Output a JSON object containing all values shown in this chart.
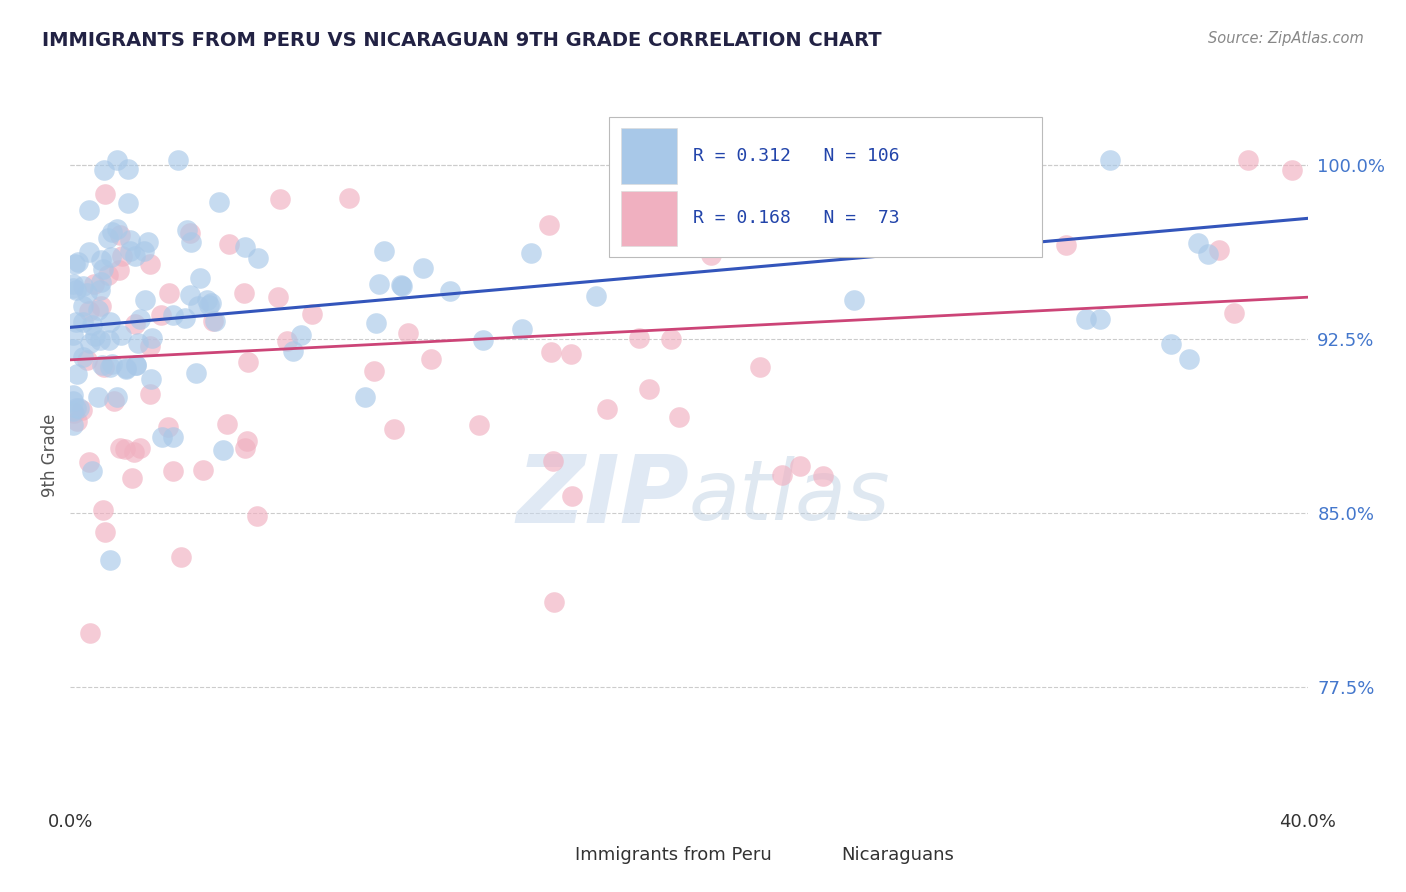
{
  "title": "IMMIGRANTS FROM PERU VS NICARAGUAN 9TH GRADE CORRELATION CHART",
  "source": "Source: ZipAtlas.com",
  "ylabel": "9th Grade",
  "blue_color": "#a8c8e8",
  "pink_color": "#f0b0c0",
  "blue_line_color": "#3355bb",
  "pink_line_color": "#cc4477",
  "legend_blue_label": "Immigrants from Peru",
  "legend_pink_label": "Nicaraguans",
  "R_blue": 0.312,
  "N_blue": 106,
  "R_pink": 0.168,
  "N_pink": 73,
  "watermark_zip": "ZIP",
  "watermark_atlas": "atlas",
  "background_color": "#ffffff",
  "ytick_color": "#4477cc",
  "xtick_color": "#333333",
  "title_color": "#222244",
  "ylabel_color": "#555555"
}
